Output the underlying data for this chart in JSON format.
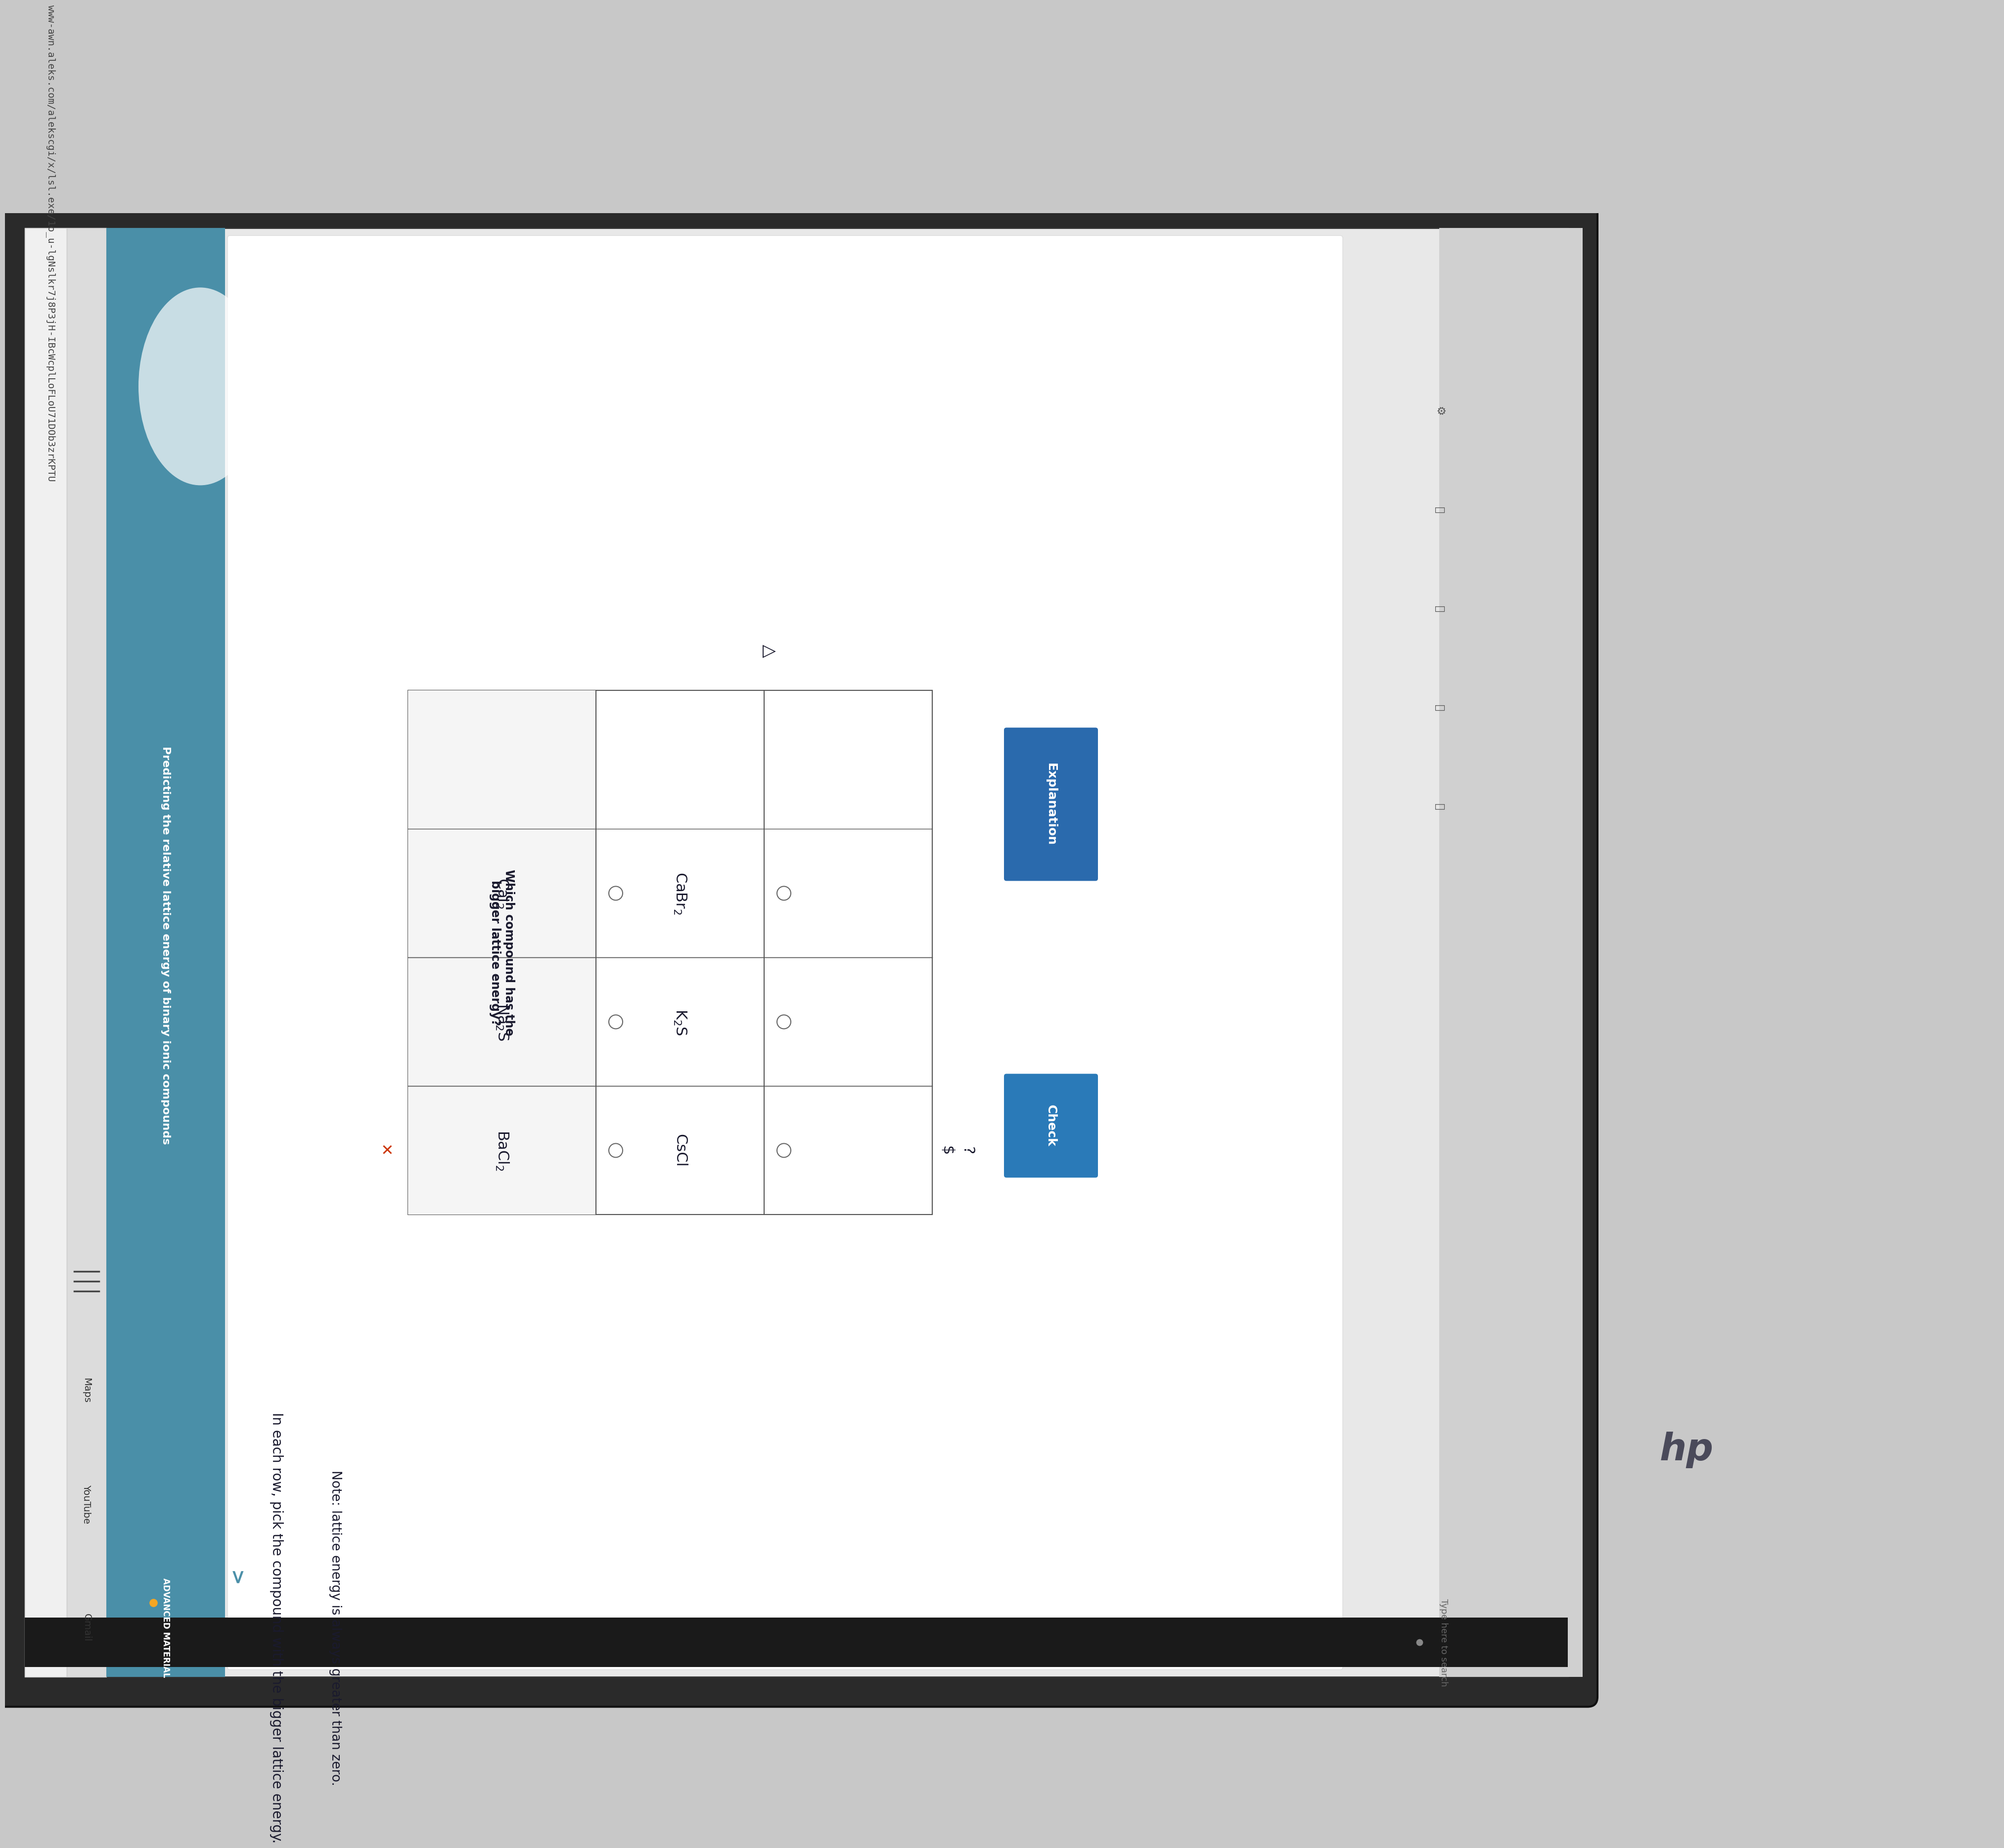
{
  "bg_color": "#c8c8c8",
  "laptop_bezel_color": "#1a1a1a",
  "screen_bg": "#e8e8e8",
  "sidebar_color": "#4a8fa8",
  "sidebar_text": "Predicting the relative lattice energy of binary ionic compounds",
  "advanced_material_label": "ADVANCED MATERIAL",
  "browser_url": "www-awn.aleks.com/alekscgi/x/lsl.exe/1o_u-lgNslkr7j8P3jH-IBcWcplLoFLoU71DOb3zrKPTU",
  "tabs": [
    "Gmail",
    "YouTube",
    "Maps"
  ],
  "instruction": "In each row, pick the compound with the bigger lattice energy.",
  "note": "Note: lattice energy is always greater than zero.",
  "table_header_col1": "Which compound has the\nbigger lattice energy?",
  "rows": [
    {
      "col1": "CaI$_2$",
      "col2": "CaBr$_2$"
    },
    {
      "col1": "Na$_2$S",
      "col2": "K$_2$S"
    },
    {
      "col1": "BaCl$_2$",
      "col2": "CsCl"
    }
  ],
  "text_dark": "#1a1a2e",
  "check_button_color": "#2a7ab8",
  "table_border": "#555555",
  "radio_circle_color": "#666666",
  "taskbar_color": "#1a1a1a",
  "url_bar_color": "#f0f0f0",
  "tabs_bar_color": "#dcdcdc",
  "white": "#ffffff",
  "dot_green": "#f5a623",
  "hp_logo_color": "#444444",
  "check_box_color": "#2a6aad",
  "explanation_box_color": "#2a6aad"
}
